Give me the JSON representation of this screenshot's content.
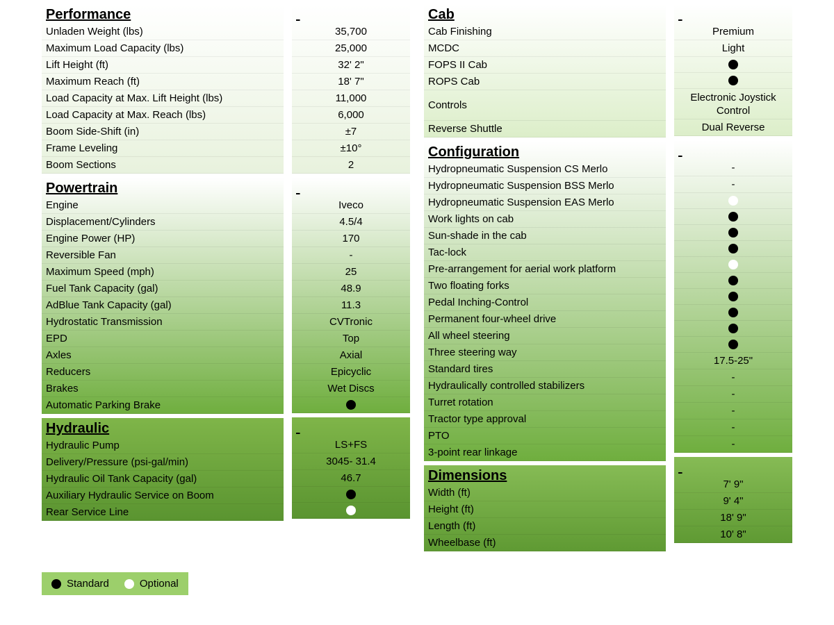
{
  "colors": {
    "grad_start": "#ffffff",
    "grad_end_light": "#b8d89a",
    "grad_end_mid": "#7fb549",
    "grad_end_dark": "#5f9a33",
    "black": "#000000",
    "white": "#ffffff",
    "legend_bg": "#9ccf6b"
  },
  "sections": {
    "left": [
      {
        "title": "Performance",
        "gradient_end": "#e8f2dd",
        "rows": [
          {
            "label": "Unladen Weight (lbs)",
            "value": "35,700"
          },
          {
            "label": "Maximum Load Capacity (lbs)",
            "value": "25,000"
          },
          {
            "label": "Lift Height (ft)",
            "value": "32' 2\""
          },
          {
            "label": "Maximum Reach (ft)",
            "value": "18' 7\""
          },
          {
            "label": "Load Capacity at Max. Lift Height (lbs)",
            "value": "11,000"
          },
          {
            "label": "Load Capacity at Max. Reach (lbs)",
            "value": "6,000"
          },
          {
            "label": "Boom Side-Shift (in)",
            "value": "±7"
          },
          {
            "label": "Frame Leveling",
            "value": "±10°"
          },
          {
            "label": "Boom Sections",
            "value": "2"
          }
        ]
      },
      {
        "title": "Powertrain",
        "gradient_end": "#6fae3e",
        "rows": [
          {
            "label": "Engine",
            "value": "Iveco"
          },
          {
            "label": "Displacement/Cylinders",
            "value": "4.5/4"
          },
          {
            "label": "Engine Power (HP)",
            "value": "170"
          },
          {
            "label": "Reversible Fan",
            "value": "-"
          },
          {
            "label": "Maximum Speed (mph)",
            "value": "25"
          },
          {
            "label": "Fuel Tank Capacity (gal)",
            "value": "48.9"
          },
          {
            "label": "AdBlue Tank Capacity (gal)",
            "value": "11.3"
          },
          {
            "label": "Hydrostatic Transmission",
            "value": "CVTronic"
          },
          {
            "label": "EPD",
            "value": "Top"
          },
          {
            "label": "Axles",
            "value": "Axial"
          },
          {
            "label": "Reducers",
            "value": "Epicyclic"
          },
          {
            "label": "Brakes",
            "value": "Wet Discs"
          },
          {
            "label": "Automatic Parking Brake",
            "value_type": "dot",
            "dot": "black"
          }
        ]
      },
      {
        "title": "Hydraulic",
        "gradient_start": "#7fb549",
        "gradient_end": "#5a9430",
        "rows": [
          {
            "label": "Hydraulic Pump",
            "value": "LS+FS"
          },
          {
            "label": "Delivery/Pressure (psi-gal/min)",
            "value": "3045- 31.4"
          },
          {
            "label": "Hydraulic Oil Tank Capacity (gal)",
            "value": "46.7"
          },
          {
            "label": "Auxiliary Hydraulic Service on Boom",
            "value_type": "dot",
            "dot": "black"
          },
          {
            "label": "Rear Service Line",
            "value_type": "dot",
            "dot": "white"
          }
        ]
      }
    ],
    "right": [
      {
        "title": "Cab",
        "gradient_end": "#dceec9",
        "rows": [
          {
            "label": "Cab Finishing",
            "value": "Premium"
          },
          {
            "label": "MCDC",
            "value": "Light"
          },
          {
            "label": "FOPS II Cab",
            "value_type": "dot",
            "dot": "black"
          },
          {
            "label": "ROPS Cab",
            "value_type": "dot",
            "dot": "black"
          },
          {
            "label": "Controls",
            "value": "Electronic Joystick Control",
            "tall": true
          },
          {
            "label": "Reverse Shuttle",
            "value": "Dual Reverse"
          }
        ]
      },
      {
        "title": "Configuration",
        "gradient_end": "#6fae3e",
        "rows": [
          {
            "label": "Hydropneumatic Suspension CS Merlo",
            "value": "-"
          },
          {
            "label": "Hydropneumatic Suspension BSS Merlo",
            "value": "-"
          },
          {
            "label": "Hydropneumatic Suspension EAS Merlo",
            "value_type": "dot",
            "dot": "white"
          },
          {
            "label": "Work lights on cab",
            "value_type": "dot",
            "dot": "black"
          },
          {
            "label": "Sun-shade in the cab",
            "value_type": "dot",
            "dot": "black"
          },
          {
            "label": "Tac-lock",
            "value_type": "dot",
            "dot": "black"
          },
          {
            "label": "Pre-arrangement for aerial work platform",
            "value_type": "dot",
            "dot": "white"
          },
          {
            "label": "Two floating forks",
            "value_type": "dot",
            "dot": "black"
          },
          {
            "label": "Pedal Inching-Control",
            "value_type": "dot",
            "dot": "black"
          },
          {
            "label": "Permanent four-wheel drive",
            "value_type": "dot",
            "dot": "black"
          },
          {
            "label": "All wheel steering",
            "value_type": "dot",
            "dot": "black"
          },
          {
            "label": "Three steering way",
            "value_type": "dot",
            "dot": "black"
          },
          {
            "label": "Standard tires",
            "value": "17.5-25\""
          },
          {
            "label": "Hydraulically controlled stabilizers",
            "value": "-"
          },
          {
            "label": "Turret rotation",
            "value": "-"
          },
          {
            "label": "Tractor type approval",
            "value": "-"
          },
          {
            "label": "PTO",
            "value": "-"
          },
          {
            "label": "3-point rear linkage",
            "value": "-"
          }
        ]
      },
      {
        "title": "Dimensions",
        "gradient_start": "#86bb55",
        "gradient_end": "#5f9a33",
        "rows": [
          {
            "label": "Width (ft)",
            "value": "7' 9\""
          },
          {
            "label": "Height (ft)",
            "value": "9' 4\""
          },
          {
            "label": "Length (ft)",
            "value": "18' 9\""
          },
          {
            "label": "Wheelbase (ft)",
            "value": "10' 8\""
          }
        ]
      }
    ]
  },
  "legend": {
    "standard": "Standard",
    "optional": "Optional"
  }
}
